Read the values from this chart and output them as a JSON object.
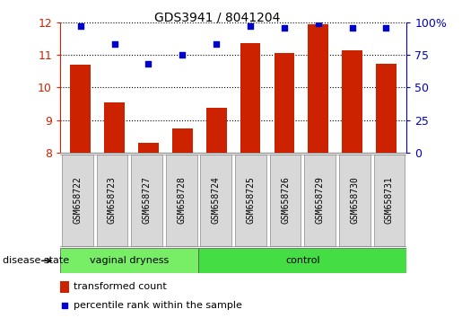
{
  "title": "GDS3941 / 8041204",
  "samples": [
    "GSM658722",
    "GSM658723",
    "GSM658727",
    "GSM658728",
    "GSM658724",
    "GSM658725",
    "GSM658726",
    "GSM658729",
    "GSM658730",
    "GSM658731"
  ],
  "transformed_counts": [
    10.7,
    9.55,
    8.3,
    8.75,
    9.38,
    11.35,
    11.05,
    11.95,
    11.15,
    10.72
  ],
  "percentile_ranks": [
    97,
    83,
    68,
    75,
    83,
    97,
    96,
    99,
    96,
    96
  ],
  "ylim_left": [
    8,
    12
  ],
  "ylim_right": [
    0,
    100
  ],
  "yticks_left": [
    8,
    9,
    10,
    11,
    12
  ],
  "yticks_right": [
    0,
    25,
    50,
    75,
    100
  ],
  "bar_color": "#cc2200",
  "dot_color": "#0000cc",
  "group1_label": "vaginal dryness",
  "group2_label": "control",
  "group1_color": "#77ee66",
  "group2_color": "#44dd44",
  "disease_state_label": "disease state",
  "legend_bar_label": "transformed count",
  "legend_dot_label": "percentile rank within the sample",
  "n_group1": 4,
  "n_group2": 6,
  "bar_color_hex": "#cc2200",
  "dot_color_hex": "#0000cc",
  "axis_color_left": "#cc2200",
  "axis_color_right": "#0000cc",
  "sample_box_color": "#d8d8d8",
  "grid_color": "#000000"
}
